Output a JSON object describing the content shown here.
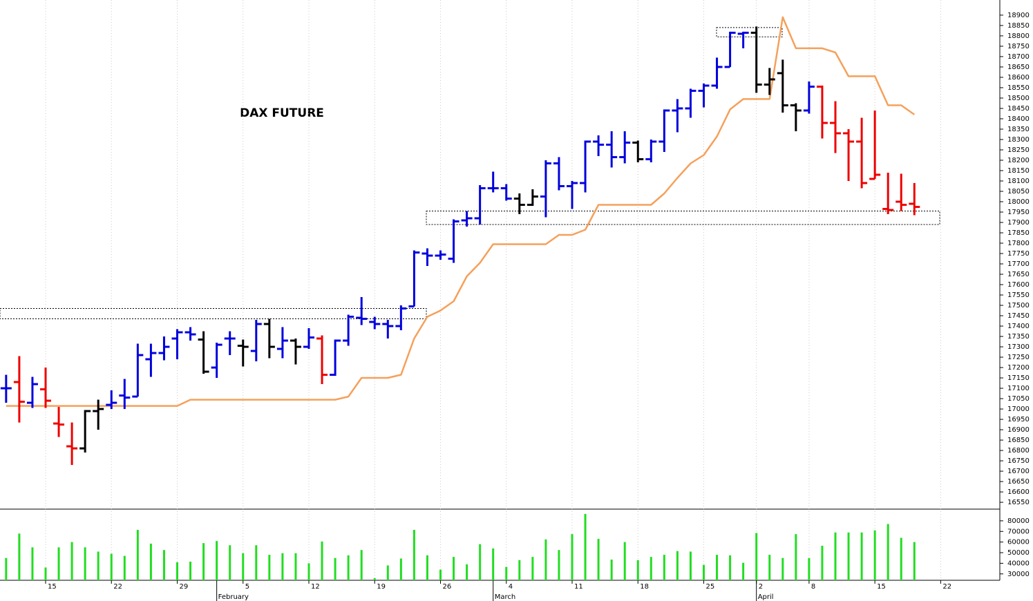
{
  "chart_data": [
    {
      "type": "ohlc",
      "title": "DAX FUTURE",
      "categories": [
        null,
        null,
        null,
        "15",
        null,
        null,
        null,
        null,
        "22",
        null,
        null,
        null,
        null,
        "29",
        null,
        null,
        null,
        null,
        "5",
        null,
        null,
        null,
        null,
        "12",
        null,
        null,
        null,
        null,
        "19",
        null,
        null,
        null,
        null,
        "26",
        null,
        null,
        null,
        null,
        "4",
        null,
        null,
        null,
        null,
        "11",
        null,
        null,
        null,
        null,
        "18",
        null,
        null,
        null,
        null,
        "25",
        null,
        null,
        null,
        "2",
        null,
        null,
        null,
        "8",
        null,
        null,
        null,
        null,
        "15",
        null,
        null,
        null,
        null,
        "22"
      ],
      "months": [
        null,
        null,
        null,
        null,
        null,
        null,
        null,
        null,
        null,
        null,
        null,
        null,
        null,
        null,
        null,
        null,
        "February",
        null,
        null,
        null,
        null,
        null,
        null,
        null,
        null,
        null,
        null,
        null,
        null,
        null,
        null,
        null,
        null,
        null,
        null,
        null,
        null,
        "March",
        null,
        null,
        null,
        null,
        null,
        null,
        null,
        null,
        null,
        null,
        null,
        null,
        null,
        null,
        null,
        null,
        null,
        null,
        null,
        "April",
        null,
        null,
        null,
        null,
        null,
        null,
        null,
        null,
        null,
        null,
        null,
        null,
        null,
        null
      ],
      "open": [
        17100,
        17130,
        17030,
        17095,
        16930,
        16820,
        16810,
        16990,
        17020,
        17065,
        17060,
        17240,
        17270,
        17340,
        17370,
        17335,
        17200,
        17340,
        17305,
        17280,
        17410,
        17290,
        17330,
        17300,
        17340,
        17165,
        17330,
        17440,
        17420,
        17410,
        17400,
        17495,
        17750,
        17740,
        17725,
        17910,
        17920,
        18065,
        18065,
        18015,
        17985,
        18025,
        18185,
        18075,
        18090,
        18290,
        18275,
        18215,
        18285,
        18205,
        18290,
        18440,
        18450,
        18535,
        18560,
        18650,
        18810,
        18815,
        18565,
        18620,
        18465,
        18440,
        18555,
        18380,
        18330,
        18290,
        18110,
        17965,
        18000,
        17990,
        null,
        null
      ],
      "high": [
        17165,
        17255,
        17155,
        17200,
        17010,
        16935,
        16995,
        17045,
        17090,
        17145,
        17315,
        17315,
        17350,
        17385,
        17395,
        17375,
        17320,
        17375,
        17335,
        17430,
        17435,
        17395,
        17340,
        17390,
        17355,
        17335,
        17455,
        17540,
        17445,
        17430,
        17500,
        17765,
        17775,
        17765,
        17915,
        17955,
        18080,
        18145,
        18085,
        18040,
        18060,
        18200,
        18215,
        18100,
        18295,
        18320,
        18340,
        18340,
        18295,
        18300,
        18445,
        18495,
        18545,
        18570,
        18695,
        18820,
        18820,
        18845,
        18645,
        18685,
        18475,
        18580,
        18560,
        18485,
        18350,
        18405,
        18440,
        18140,
        18135,
        18090,
        null,
        null
      ],
      "low": [
        17030,
        16935,
        17005,
        17005,
        16865,
        16730,
        16790,
        16900,
        17000,
        17000,
        17060,
        17155,
        17235,
        17240,
        17330,
        17170,
        17150,
        17260,
        17205,
        17230,
        17245,
        17245,
        17215,
        17290,
        17120,
        17160,
        17305,
        17405,
        17385,
        17340,
        17380,
        17495,
        17690,
        17720,
        17705,
        17880,
        17890,
        18045,
        18005,
        17940,
        17980,
        17925,
        18055,
        17965,
        18045,
        18220,
        18165,
        18185,
        18190,
        18190,
        18240,
        18335,
        18405,
        18455,
        18545,
        18650,
        18740,
        18525,
        18515,
        18430,
        18340,
        18425,
        18305,
        18235,
        18100,
        18065,
        18110,
        17940,
        17955,
        17935,
        null,
        null
      ],
      "close": [
        17100,
        17035,
        17120,
        17040,
        16925,
        16810,
        16990,
        17000,
        17030,
        17055,
        17260,
        17270,
        17300,
        17370,
        17360,
        17180,
        17310,
        17340,
        17300,
        17410,
        17300,
        17330,
        17300,
        17345,
        17165,
        17330,
        17445,
        17435,
        17410,
        17400,
        17485,
        17755,
        17740,
        17745,
        17905,
        17920,
        18065,
        18065,
        18015,
        17985,
        18025,
        18185,
        18075,
        18090,
        18290,
        18275,
        18215,
        18285,
        18205,
        18290,
        18440,
        18450,
        18535,
        18560,
        18650,
        18815,
        18815,
        18565,
        18590,
        18465,
        18440,
        18555,
        18380,
        18330,
        18290,
        18090,
        18130,
        17960,
        17985,
        17975,
        null,
        null
      ],
      "bar_colors": [
        "#0000dd",
        "#ee0000",
        "#0000dd",
        "#ee0000",
        "#ee0000",
        "#ee0000",
        "#000000",
        "#000000",
        "#0000dd",
        "#0000dd",
        "#0000dd",
        "#0000dd",
        "#0000dd",
        "#0000dd",
        "#0000dd",
        "#000000",
        "#0000dd",
        "#0000dd",
        "#000000",
        "#0000dd",
        "#000000",
        "#0000dd",
        "#000000",
        "#0000dd",
        "#ee0000",
        "#0000dd",
        "#0000dd",
        "#0000dd",
        "#0000dd",
        "#0000dd",
        "#0000dd",
        "#0000dd",
        "#0000dd",
        "#0000dd",
        "#0000dd",
        "#0000dd",
        "#0000dd",
        "#0000dd",
        "#0000dd",
        "#000000",
        "#000000",
        "#0000dd",
        "#0000dd",
        "#0000dd",
        "#0000dd",
        "#0000dd",
        "#0000dd",
        "#0000dd",
        "#000000",
        "#0000dd",
        "#0000dd",
        "#0000dd",
        "#0000dd",
        "#0000dd",
        "#0000dd",
        "#0000dd",
        "#0000dd",
        "#000000",
        "#000000",
        "#000000",
        "#000000",
        "#0000dd",
        "#ee0000",
        "#ee0000",
        "#ee0000",
        "#ee0000",
        "#ee0000",
        "#ee0000",
        "#ee0000",
        "#ee0000",
        null,
        null
      ],
      "lines": [
        {
          "color": "#f5a05a",
          "values": [
            17015,
            17015,
            17015,
            17015,
            17015,
            17015,
            17015,
            17015,
            17015,
            17015,
            17015,
            17015,
            17015,
            17015,
            17045,
            17045,
            17045,
            17045,
            17045,
            17045,
            17045,
            17045,
            17045,
            17045,
            17045,
            17045,
            17060,
            17150,
            17150,
            17150,
            17165,
            17340,
            17445,
            17475,
            17520,
            17640,
            17705,
            17795,
            17795,
            17795,
            17795,
            17795,
            17840,
            17840,
            17865,
            17985,
            17985,
            17985,
            17985,
            17985,
            18040,
            18115,
            18185,
            18225,
            18315,
            18445,
            18495,
            18495,
            18495,
            18890,
            18740,
            18740,
            18740,
            18720,
            18605,
            18605,
            18605,
            18465,
            18465,
            18420,
            null,
            null
          ]
        }
      ],
      "zones": [
        {
          "low": 17435,
          "high": 17485
        },
        {
          "low": 17890,
          "high": 17955
        },
        {
          "low": 18795,
          "high": 18840
        }
      ],
      "ylim": [
        16517,
        18973
      ],
      "yticks": [
        16550,
        16600,
        16650,
        16700,
        16750,
        16800,
        16850,
        16900,
        16950,
        17000,
        17050,
        17100,
        17150,
        17200,
        17250,
        17300,
        17350,
        17400,
        17450,
        17500,
        17550,
        17600,
        17650,
        17700,
        17750,
        17800,
        17850,
        17900,
        17950,
        18000,
        18050,
        18100,
        18150,
        18200,
        18250,
        18300,
        18350,
        18400,
        18450,
        18500,
        18550,
        18600,
        18650,
        18700,
        18750,
        18800,
        18850,
        18900
      ]
    },
    {
      "type": "bar",
      "color": "#22dd22",
      "values": [
        45000,
        68000,
        55000,
        36000,
        55000,
        60000,
        55000,
        51000,
        49000,
        47000,
        71500,
        58500,
        52500,
        41000,
        41500,
        59000,
        61000,
        57000,
        49500,
        57000,
        48000,
        49500,
        49500,
        40000,
        60500,
        45000,
        47500,
        52500,
        26000,
        38000,
        44500,
        71500,
        47500,
        34000,
        46000,
        39000,
        58000,
        54000,
        36500,
        43000,
        46000,
        62500,
        52500,
        67500,
        86500,
        63000,
        43500,
        60000,
        43000,
        46000,
        48000,
        51500,
        51000,
        38500,
        48000,
        47500,
        40500,
        68500,
        48000,
        45000,
        67500,
        45000,
        56500,
        69000,
        69000,
        69000,
        71000,
        77000,
        64000,
        60000,
        null,
        null
      ],
      "ylim": [
        24000,
        91000
      ],
      "yticks": [
        30000,
        40000,
        50000,
        60000,
        70000,
        80000
      ]
    }
  ]
}
